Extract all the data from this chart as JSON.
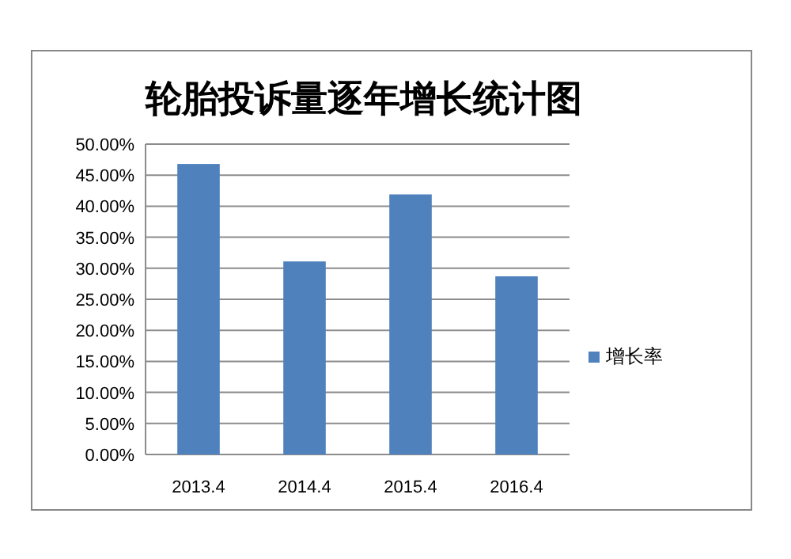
{
  "chart_data": {
    "type": "bar",
    "title": "轮胎投诉量逐年增长统计图",
    "categories": [
      "2013.4",
      "2014.4",
      "2015.4",
      "2016.4"
    ],
    "series": [
      {
        "name": "增长率",
        "color": "#4f81bd",
        "values": [
          46.8,
          31.1,
          41.9,
          28.7
        ]
      }
    ],
    "ylim": [
      0,
      50
    ],
    "yticks": [
      {
        "value": 0,
        "label": "0.00%"
      },
      {
        "value": 5,
        "label": "5.00%"
      },
      {
        "value": 10,
        "label": "10.00%"
      },
      {
        "value": 15,
        "label": "15.00%"
      },
      {
        "value": 20,
        "label": "20.00%"
      },
      {
        "value": 25,
        "label": "25.00%"
      },
      {
        "value": 30,
        "label": "30.00%"
      },
      {
        "value": 35,
        "label": "35.00%"
      },
      {
        "value": 40,
        "label": "40.00%"
      },
      {
        "value": 45,
        "label": "45.00%"
      },
      {
        "value": 50,
        "label": "50.00%"
      }
    ],
    "grid": "y",
    "legend": "right"
  }
}
